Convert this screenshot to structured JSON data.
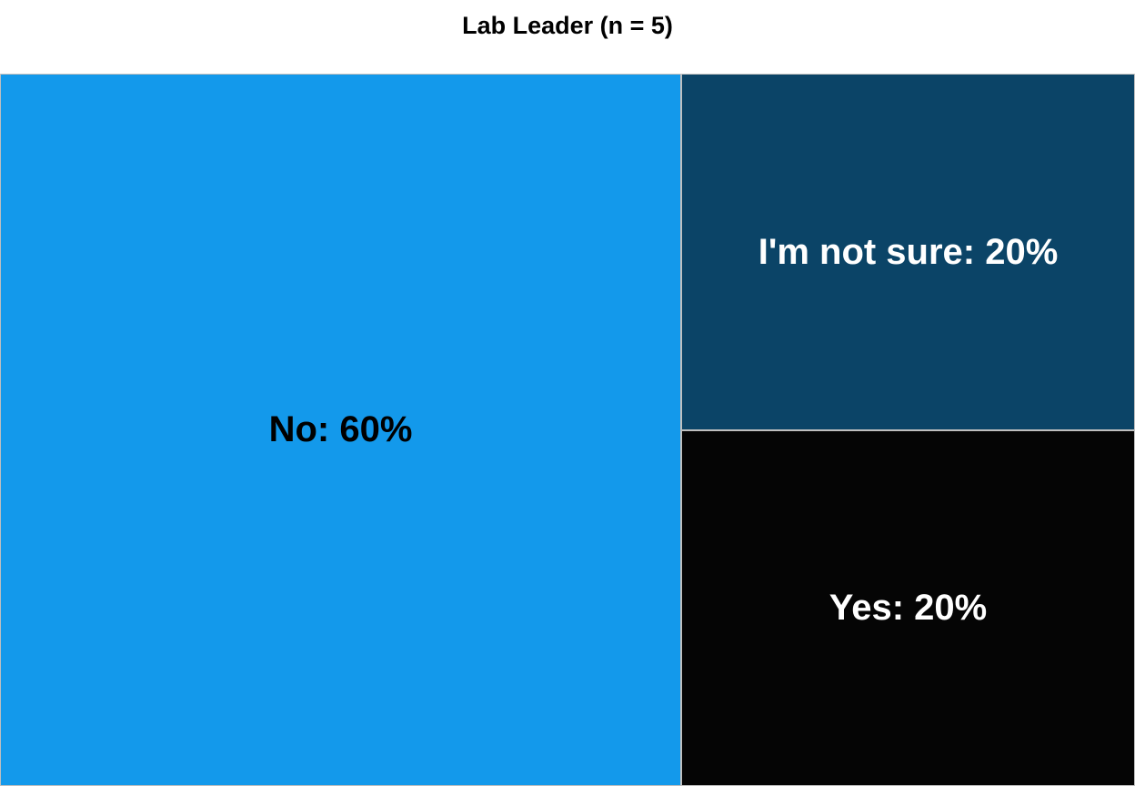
{
  "chart_data": {
    "type": "treemap",
    "title": "Lab Leader (n = 5)",
    "items": [
      {
        "category": "No",
        "value": 60,
        "label": "No: 60%",
        "color": "#1399EB",
        "text_color": "#000000"
      },
      {
        "category": "I'm not sure",
        "value": 20,
        "label": "I'm not sure: 20%",
        "color": "#0B4467",
        "text_color": "#FFFFFF"
      },
      {
        "category": "Yes",
        "value": 20,
        "label": "Yes: 20%",
        "color": "#050505",
        "text_color": "#FFFFFF"
      }
    ],
    "unit": "%"
  }
}
